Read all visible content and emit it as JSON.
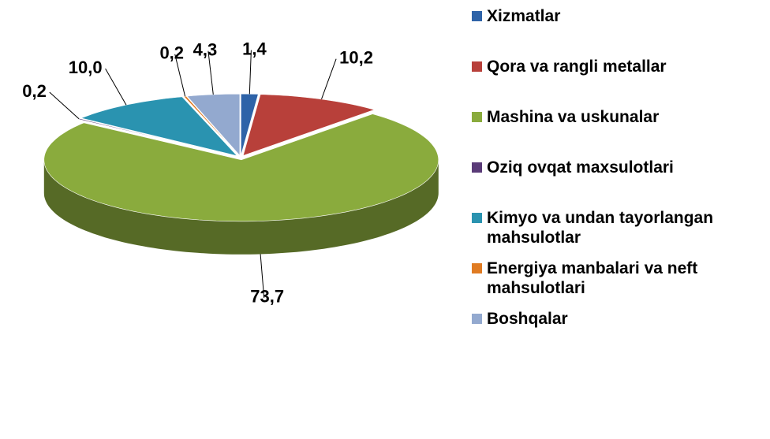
{
  "chart_data": {
    "type": "pie",
    "categories": [
      "Xizmatlar",
      "Qora va rangli metallar",
      "Mashina va uskunalar",
      "Oziq ovqat maxsulotlari",
      "Kimyo va undan tayorlangan mahsulotlar",
      "Energiya manbalari va neft mahsulotlari",
      "Boshqalar"
    ],
    "values": [
      1.4,
      10.2,
      73.7,
      0.2,
      10.0,
      0.2,
      4.3
    ],
    "value_labels": [
      "1,4",
      "10,2",
      "73,7",
      "0,2",
      "10,0",
      "0,2",
      "4,3"
    ],
    "colors": [
      "#2e63a8",
      "#b8403a",
      "#8aab3d",
      "#5a3b78",
      "#2a93b0",
      "#e07b22",
      "#93a9cf"
    ],
    "legend": "right"
  }
}
